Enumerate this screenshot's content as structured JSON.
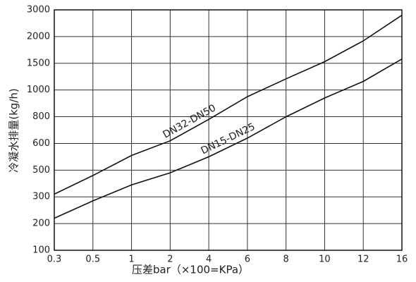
{
  "chart_data": {
    "type": "line",
    "x_label": "压差bar（×100=KPa）",
    "y_label": "冷凝水排量(kg/h)",
    "x": [
      0.3,
      0.5,
      1,
      2,
      4,
      6,
      8,
      10,
      12,
      16
    ],
    "series": [
      {
        "name": "DN32-DN50",
        "color": "#111111",
        "values": [
          320,
          460,
          555,
          620,
          780,
          950,
          1210,
          1530,
          1920,
          2800
        ]
      },
      {
        "name": "DN15-DN25",
        "color": "#111111",
        "values": [
          220,
          285,
          390,
          480,
          550,
          640,
          800,
          940,
          1160,
          1580
        ]
      }
    ],
    "xlim": [
      0.3,
      16
    ],
    "xticks": [
      0.3,
      0.5,
      1,
      2,
      4,
      6,
      8,
      10,
      12,
      16
    ],
    "ylim": [
      100,
      3000
    ],
    "yticks": [
      100,
      200,
      300,
      500,
      600,
      800,
      1000,
      1500,
      2000,
      3000
    ],
    "grid": true
  }
}
